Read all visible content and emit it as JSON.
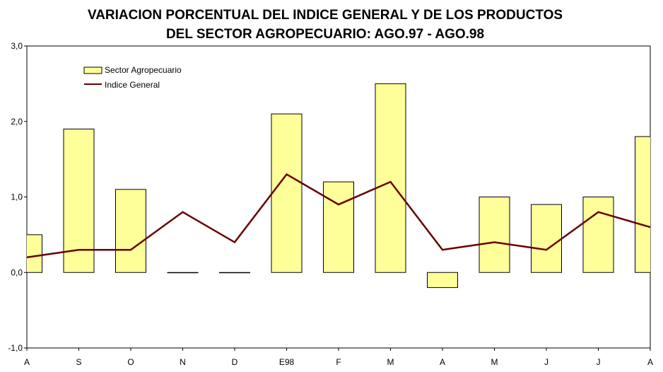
{
  "chart_data": {
    "type": "bar",
    "title_line1": "VARIACION PORCENTUAL DEL INDICE GENERAL Y DE LOS PRODUCTOS",
    "title_line2": "DEL SECTOR AGROPECUARIO: AGO.97 - AGO.98",
    "categories": [
      "A",
      "S",
      "O",
      "N",
      "D",
      "E98",
      "F",
      "M",
      "A",
      "M",
      "J",
      "J",
      "A"
    ],
    "series": [
      {
        "name": "Sector Agropecuario",
        "kind": "bar",
        "color": "#FFFF99",
        "values": [
          0.5,
          1.9,
          1.1,
          0.0,
          0.0,
          2.1,
          1.2,
          2.5,
          -0.2,
          1.0,
          0.9,
          1.0,
          1.8
        ]
      },
      {
        "name": "Indice General",
        "kind": "line",
        "color": "#660000",
        "values": [
          0.2,
          0.3,
          0.3,
          0.8,
          0.4,
          1.3,
          0.9,
          1.2,
          0.3,
          0.4,
          0.3,
          0.8,
          0.6
        ]
      }
    ],
    "yticks": [
      "3,0",
      "2,0",
      "1,0",
      "0,0",
      "-1,0"
    ],
    "ylim": [
      -1.0,
      3.0
    ],
    "legend_position": "top-left"
  }
}
